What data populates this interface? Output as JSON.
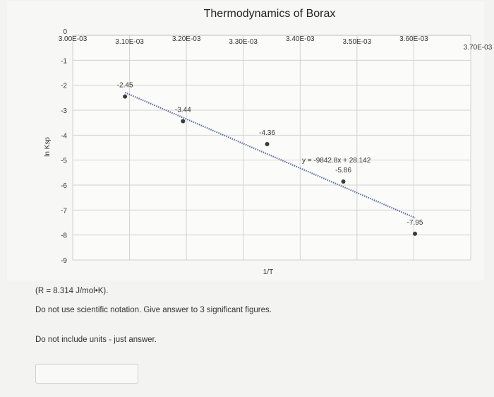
{
  "chart_data": {
    "type": "scatter",
    "title": "Thermodynamics of Borax",
    "xlabel": "1/T",
    "ylabel": "ln Ksp",
    "x_ticks": [
      "3.00E-03",
      "3.10E-03",
      "3.20E-03",
      "3.30E-03",
      "3.40E-03",
      "3.50E-03",
      "3.60E-03",
      "3.70E-03"
    ],
    "y_ticks": [
      "0",
      "-1",
      "-2",
      "-3",
      "-4",
      "-5",
      "-6",
      "-7",
      "-8",
      "-9"
    ],
    "xlim": [
      0.003,
      0.0037
    ],
    "ylim": [
      -9,
      0
    ],
    "grid": true,
    "points": [
      {
        "x": 0.003092,
        "y": -2.45,
        "label": "-2.45"
      },
      {
        "x": 0.003194,
        "y": -3.44,
        "label": "-3.44"
      },
      {
        "x": 0.003342,
        "y": -4.36,
        "label": "-4.36"
      },
      {
        "x": 0.003476,
        "y": -5.86,
        "label": "-5.86"
      },
      {
        "x": 0.003602,
        "y": -7.95,
        "label": "-7.95"
      }
    ],
    "trendline": {
      "slope": -9842.8,
      "intercept": 28.142,
      "equation": "y = -9842.8x + 28.142",
      "style": "dotted"
    },
    "colors": {
      "points": "#3a3a3a",
      "trendline": "#5b6c9a",
      "grid": "#d2d2d2"
    }
  },
  "notes": {
    "r_value": "(R = 8.314 J/mol•K).",
    "instruction": "Do not use scientific notation. Give answer to 3 significant figures.",
    "units_note": "Do not include units - just answer."
  },
  "answer": {
    "value": "",
    "placeholder": ""
  }
}
